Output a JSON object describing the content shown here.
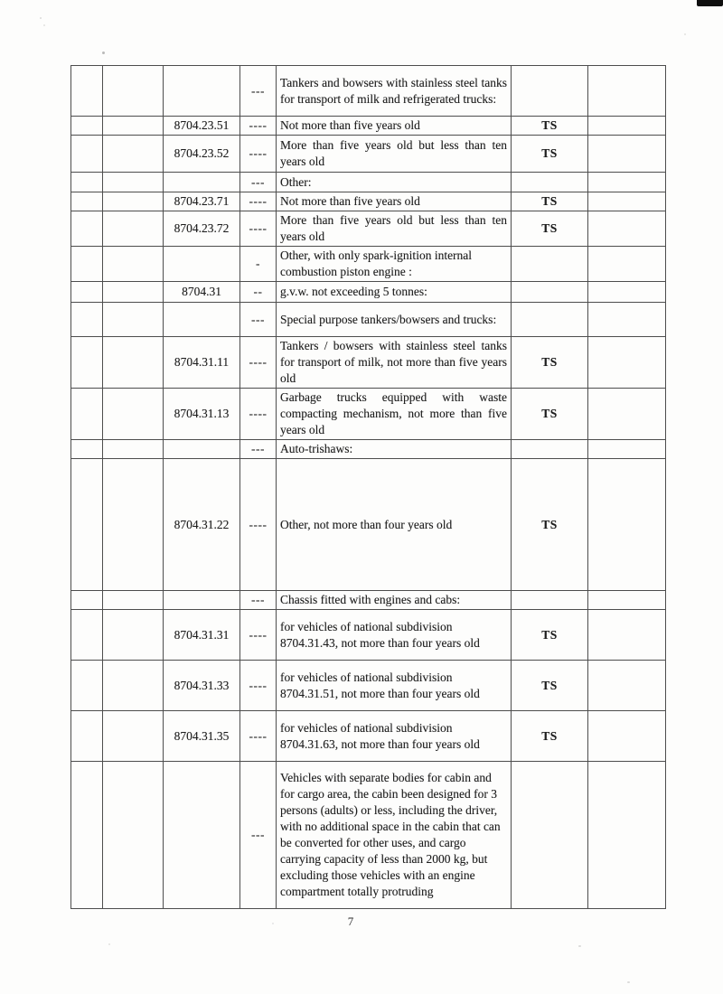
{
  "page": {
    "number": "7"
  },
  "table": {
    "columns": [
      "blank-1",
      "blank-2",
      "hs-code",
      "dash-level",
      "description",
      "trade-status",
      "blank-3"
    ],
    "status_values": {
      "restricted": "TS"
    },
    "rows": [
      {
        "code": "",
        "dashes": "---",
        "description": "Tankers and bowsers with stainless steel tanks for transport of milk and refrigerated trucks:",
        "status": ""
      },
      {
        "code": "8704.23.51",
        "dashes": "----",
        "description": "Not more than five years old",
        "status": "TS"
      },
      {
        "code": "8704.23.52",
        "dashes": "----",
        "description": "More than five years old but less than ten years old",
        "status": "TS"
      },
      {
        "code": "",
        "dashes": "---",
        "description": "Other:",
        "status": ""
      },
      {
        "code": "8704.23.71",
        "dashes": "----",
        "description": "Not more than five years old",
        "status": "TS"
      },
      {
        "code": "8704.23.72",
        "dashes": "----",
        "description": "More than five years old but less than ten years old",
        "status": "TS"
      },
      {
        "code": "",
        "dashes": "-",
        "description": "Other, with only spark-ignition internal combustion piston engine :",
        "status": ""
      },
      {
        "code": "8704.31",
        "dashes": "--",
        "description": "g.v.w. not exceeding 5 tonnes:",
        "status": ""
      },
      {
        "code": "",
        "dashes": "---",
        "description": "Special purpose tankers/bowsers and trucks:",
        "status": ""
      },
      {
        "code": "8704.31.11",
        "dashes": "----",
        "description": "Tankers / bowsers with stainless steel tanks for transport of milk, not more than five years old",
        "status": "TS"
      },
      {
        "code": "8704.31.13",
        "dashes": "----",
        "description": "Garbage trucks equipped with waste compacting mechanism, not more than five years old",
        "status": "TS"
      },
      {
        "code": "",
        "dashes": "---",
        "description": "Auto-trishaws:",
        "status": ""
      },
      {
        "code": "8704.31.22",
        "dashes": "----",
        "description": "Other, not more than four years old",
        "status": "TS"
      },
      {
        "code": "",
        "dashes": "---",
        "description": "Chassis fitted with engines and cabs:",
        "status": ""
      },
      {
        "code": "8704.31.31",
        "dashes": "----",
        "description": "for vehicles of national subdivision 8704.31.43, not more than four years old",
        "status": "TS"
      },
      {
        "code": "8704.31.33",
        "dashes": "----",
        "description": "for vehicles of national subdivision 8704.31.51, not more than four years old",
        "status": "TS"
      },
      {
        "code": "8704.31.35",
        "dashes": "----",
        "description": "for vehicles of national subdivision 8704.31.63, not more than four years old",
        "status": "TS"
      },
      {
        "code": "",
        "dashes": "---",
        "description": "Vehicles with separate bodies for cabin and for cargo area, the cabin been designed for 3 persons (adults) or less, including the driver, with no additional space in the cabin that can be converted for other uses, and cargo carrying capacity of less than 2000 kg, but excluding those vehicles with an engine compartment totally protruding",
        "status": ""
      }
    ]
  }
}
